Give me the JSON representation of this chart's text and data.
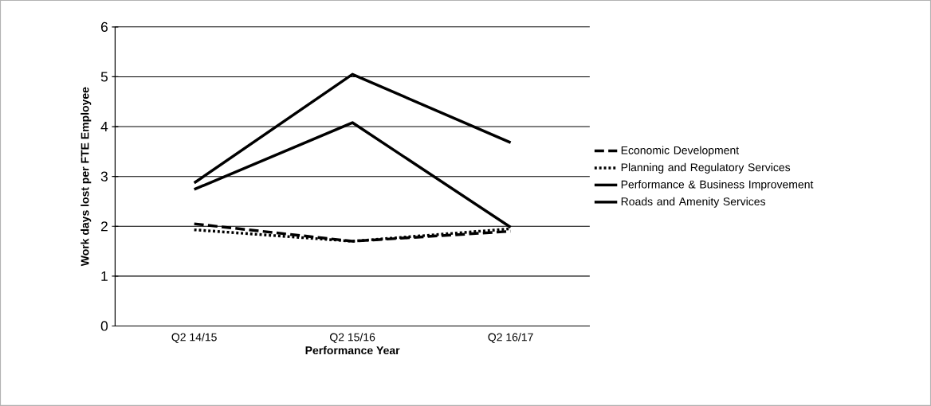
{
  "chart_data": {
    "type": "line",
    "xlabel": "Performance Year",
    "ylabel": "Work days lost per FTE Employee",
    "categories": [
      "Q2 14/15",
      "Q2 15/16",
      "Q2 16/17"
    ],
    "series": [
      {
        "name": "Economic Development",
        "color": "#000000",
        "line_style": "dashed",
        "values": [
          2.05,
          1.7,
          1.9
        ]
      },
      {
        "name": "Planning and Regulatory Services",
        "color": "#000000",
        "line_style": "dotted",
        "values": [
          1.93,
          1.7,
          1.95
        ]
      },
      {
        "name": "Performance & Business Improvement",
        "color": "#000000",
        "line_style": "solid",
        "values": [
          2.74,
          4.08,
          1.98
        ]
      },
      {
        "name": "Roads and Amenity Services",
        "color": "#000000",
        "line_style": "solid",
        "values": [
          2.87,
          5.05,
          3.68
        ]
      }
    ],
    "ylim": [
      0,
      6
    ],
    "yticks": [
      0,
      1,
      2,
      3,
      4,
      5,
      6
    ],
    "grid": "y",
    "legend": "right",
    "marker": "none"
  }
}
